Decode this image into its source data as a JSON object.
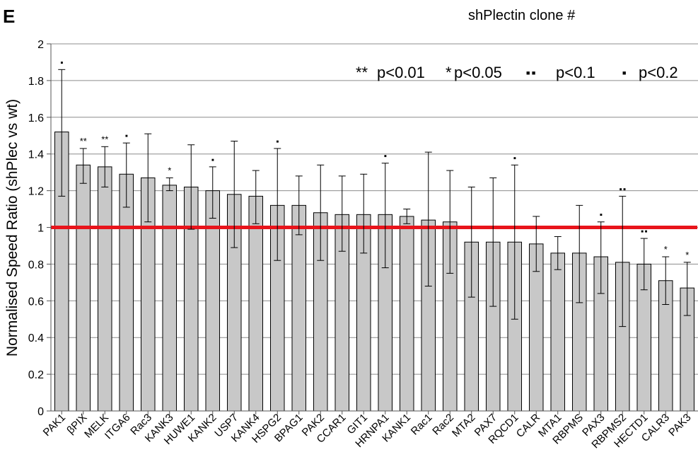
{
  "panel_label": "E",
  "top_note": "shPlectin clone #",
  "chart_data": {
    "type": "bar",
    "title": "",
    "xlabel": "",
    "ylabel": "Normalised Speed Ratio (shPlec vs wt)",
    "ylim": [
      0,
      2
    ],
    "yticks": [
      "0",
      "0.2",
      "0.4",
      "0.6",
      "0.8",
      "1",
      "1.2",
      "1.4",
      "1.6",
      "1.8",
      "2"
    ],
    "grid": true,
    "reference_line": {
      "y": 1,
      "color": "#e8141b"
    },
    "bar_color": "#c8c8c8",
    "legend": [
      {
        "symbol": "**",
        "label": "p<0.01"
      },
      {
        "symbol": "*",
        "label": "p<0.05"
      },
      {
        "symbol": "■ ■",
        "label": "p<0.1"
      },
      {
        "symbol": "■",
        "label": "p<0.2"
      }
    ],
    "categories": [
      "PAK1",
      "βPIX",
      "MELK",
      "ITGA6",
      "Rac3",
      "KANK3",
      "HUWE1",
      "KANK2",
      "USP7",
      "KANK4",
      "HSPG2",
      "BPAG1",
      "PAK2",
      "CCAR1",
      "GIT1",
      "HRNPA1",
      "KANK1",
      "Rac1",
      "Rac2",
      "MTA2",
      "PAX7",
      "RQCD1",
      "CALR",
      "MTA1",
      "RBPMS",
      "PAX3",
      "RBPMS2",
      "HECTD1",
      "CALR3",
      "PAK3"
    ],
    "values": [
      1.52,
      1.34,
      1.33,
      1.29,
      1.27,
      1.23,
      1.22,
      1.2,
      1.18,
      1.17,
      1.12,
      1.12,
      1.08,
      1.07,
      1.07,
      1.07,
      1.06,
      1.04,
      1.03,
      0.92,
      0.92,
      0.92,
      0.91,
      0.86,
      0.86,
      0.84,
      0.81,
      0.8,
      0.71,
      0.67
    ],
    "error_upper": [
      1.86,
      1.43,
      1.44,
      1.46,
      1.51,
      1.27,
      1.45,
      1.33,
      1.47,
      1.31,
      1.43,
      1.28,
      1.34,
      1.28,
      1.29,
      1.35,
      1.1,
      1.41,
      1.31,
      1.22,
      1.27,
      1.34,
      1.06,
      0.95,
      1.12,
      1.03,
      1.17,
      0.94,
      0.84,
      0.81
    ],
    "error_lower": [
      1.17,
      1.24,
      1.22,
      1.11,
      1.03,
      1.2,
      0.99,
      1.05,
      0.89,
      1.02,
      0.82,
      0.96,
      0.82,
      0.87,
      0.86,
      0.78,
      1.02,
      0.68,
      0.75,
      0.62,
      0.57,
      0.5,
      0.76,
      0.77,
      0.59,
      0.64,
      0.46,
      0.66,
      0.58,
      0.52
    ],
    "significance": [
      "■",
      "**",
      "**",
      "■",
      "",
      "*",
      "",
      "■",
      "",
      "",
      "■",
      "",
      "",
      "",
      "",
      "■",
      "",
      "",
      "",
      "",
      "",
      "■",
      "",
      "",
      "",
      "■",
      "■ ■",
      "■ ■",
      "*",
      "*"
    ]
  }
}
